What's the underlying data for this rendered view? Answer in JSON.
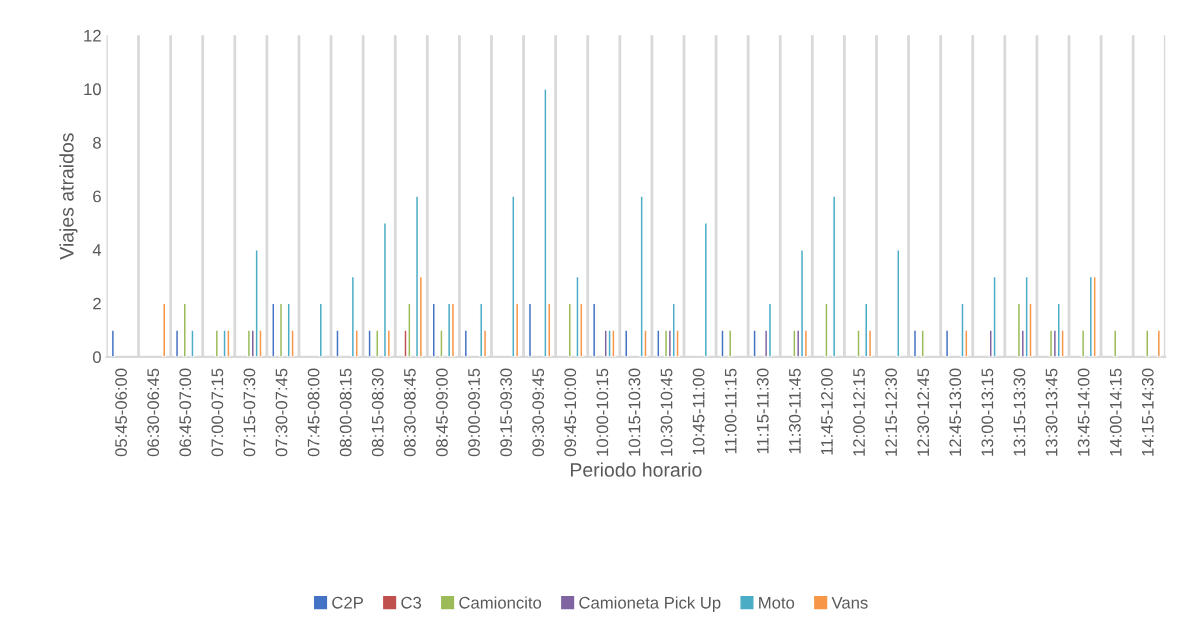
{
  "chart_data": {
    "type": "bar",
    "xlabel": "Periodo horario",
    "ylabel": "Viajes atraidos",
    "categories": [
      "05:45-06:00",
      "06:30-06:45",
      "06:45-07:00",
      "07:00-07:15",
      "07:15-07:30",
      "07:30-07:45",
      "07:45-08:00",
      "08:00-08:15",
      "08:15-08:30",
      "08:30-08:45",
      "08:45-09:00",
      "09:00-09:15",
      "09:15-09:30",
      "09:30-09:45",
      "09:45-10:00",
      "10:00-10:15",
      "10:15-10:30",
      "10:30-10:45",
      "10:45-11:00",
      "11:00-11:15",
      "11:15-11:30",
      "11:30-11:45",
      "11:45-12:00",
      "12:00-12:15",
      "12:15-12:30",
      "12:30-12:45",
      "12:45-13:00",
      "13:00-13:15",
      "13:15-13:30",
      "13:30-13:45",
      "13:45-14:00",
      "14:00-14:15",
      "14:15-14:30"
    ],
    "series": [
      {
        "name": "C2P",
        "color": "#4472c4",
        "values": [
          1,
          null,
          1,
          null,
          null,
          2,
          null,
          1,
          1,
          null,
          2,
          1,
          null,
          2,
          null,
          2,
          1,
          1,
          null,
          1,
          1,
          null,
          null,
          null,
          null,
          1,
          1,
          null,
          null,
          null,
          null,
          null,
          null
        ]
      },
      {
        "name": "C3",
        "color": "#c0504d",
        "values": [
          null,
          null,
          null,
          null,
          null,
          null,
          null,
          null,
          null,
          1,
          null,
          null,
          null,
          null,
          null,
          null,
          null,
          null,
          null,
          null,
          null,
          null,
          null,
          null,
          null,
          null,
          null,
          null,
          null,
          null,
          null,
          null,
          null
        ]
      },
      {
        "name": "Camioncito",
        "color": "#9bbb59",
        "values": [
          null,
          null,
          2,
          1,
          1,
          2,
          null,
          null,
          1,
          2,
          1,
          null,
          null,
          null,
          2,
          null,
          null,
          1,
          null,
          1,
          null,
          1,
          2,
          1,
          null,
          1,
          null,
          null,
          2,
          1,
          1,
          1,
          1
        ]
      },
      {
        "name": "Camioneta Pick Up",
        "color": "#8064a2",
        "values": [
          null,
          null,
          null,
          null,
          1,
          null,
          null,
          null,
          null,
          null,
          null,
          null,
          null,
          null,
          null,
          1,
          null,
          1,
          null,
          null,
          1,
          1,
          null,
          null,
          null,
          null,
          null,
          1,
          1,
          1,
          null,
          null,
          null
        ]
      },
      {
        "name": "Moto",
        "color": "#4bacc6",
        "values": [
          null,
          null,
          1,
          1,
          4,
          2,
          2,
          3,
          5,
          6,
          2,
          2,
          6,
          10,
          3,
          1,
          6,
          2,
          5,
          null,
          2,
          4,
          6,
          2,
          4,
          null,
          2,
          3,
          3,
          2,
          3,
          null,
          null
        ]
      },
      {
        "name": "Vans",
        "color": "#f79646",
        "values": [
          null,
          2,
          null,
          1,
          1,
          1,
          null,
          1,
          1,
          3,
          2,
          1,
          2,
          2,
          2,
          1,
          1,
          1,
          null,
          null,
          null,
          1,
          null,
          1,
          null,
          null,
          1,
          null,
          2,
          1,
          3,
          null,
          1
        ]
      }
    ],
    "ylim": [
      0,
      12
    ],
    "yticks": [
      0,
      2,
      4,
      6,
      8,
      10,
      12
    ],
    "grid": "x",
    "legend": "bottom"
  }
}
